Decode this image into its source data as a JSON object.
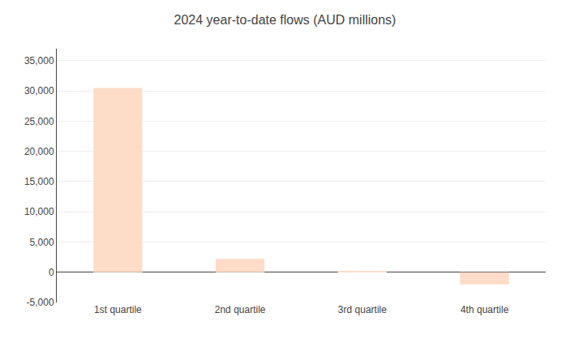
{
  "chart_data": {
    "type": "bar",
    "title": "2024 year-to-date flows (AUD millions)",
    "categories": [
      "1st quartile",
      "2nd quartile",
      "3rd quartile",
      "4th quartile"
    ],
    "values": [
      30500,
      2200,
      130,
      -2000
    ],
    "color": "#FDDCC8",
    "ylim": [
      -5000,
      37000
    ],
    "yticks": [
      {
        "value": -5000,
        "label": "-5,000"
      },
      0,
      {
        "value": 5000,
        "label": "5,000"
      },
      {
        "value": 10000,
        "label": "10,000"
      },
      {
        "value": 15000,
        "label": "15,000"
      },
      {
        "value": 20000,
        "label": "20,000"
      },
      {
        "value": 25000,
        "label": "25,000"
      },
      {
        "value": 30000,
        "label": "30,000"
      },
      {
        "value": 35000,
        "label": "35,000"
      }
    ],
    "grid": true
  }
}
